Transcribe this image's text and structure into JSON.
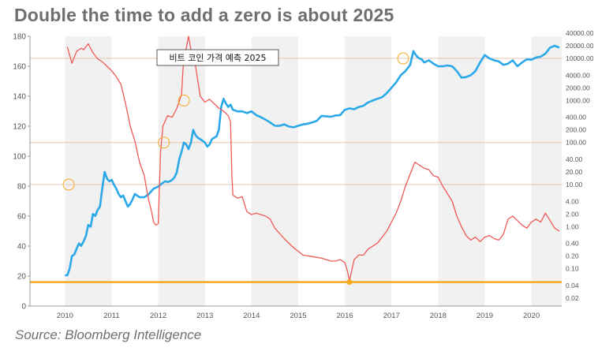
{
  "colors": {
    "blue_series": "#2aa8e8",
    "red_series": "#ef5a57",
    "orange_line": "#f7a823",
    "ref_lines": "#e9c3b0",
    "bands": "#f1f1f1",
    "text": "#6f6f6f"
  },
  "chart_data": {
    "type": "line",
    "title": "Double the time to add a zero is about 2025",
    "source": "Source: Bloomberg Intelligence",
    "annotation": "비트 코인 가격 예측 2025",
    "xlabel": "",
    "ylabel": "",
    "xlim": [
      2009.75,
      2021.15
    ],
    "ylim": [
      0,
      180
    ],
    "grid": false,
    "legend": "none",
    "x_ticks": [
      "2010",
      "2011",
      "2012",
      "2013",
      "2014",
      "2015",
      "2016",
      "2017",
      "2018",
      "2019",
      "2020"
    ],
    "y_ticks": [
      0,
      20,
      40,
      60,
      80,
      100,
      120,
      140,
      160,
      180
    ],
    "y2_scale": "log",
    "y2_ticks": [
      "0.02",
      "0.04",
      "0.10",
      "0.20",
      "0.40",
      "1.00",
      "2.00",
      "4.00",
      "10.00",
      "20.00",
      "40.00",
      "100.00",
      "200.00",
      "400.00",
      "1000.00",
      "2000.00",
      "4000.00",
      "10000.00",
      "20000.00",
      "40000.00"
    ],
    "horizontal_lines_right_axis": [
      10,
      100,
      10000
    ],
    "horizontal_line_left_axis": 16,
    "series": [
      {
        "axis": "right",
        "color": "#2aa8e8",
        "x": [
          2010.5,
          2010.55,
          2010.6,
          2010.65,
          2010.7,
          2010.75,
          2010.8,
          2010.85,
          2010.9,
          2010.95,
          2011.0,
          2011.05,
          2011.1,
          2011.15,
          2011.2,
          2011.25,
          2011.3,
          2011.35,
          2011.4,
          2011.45,
          2011.5,
          2011.55,
          2011.6,
          2011.65,
          2011.7,
          2011.75,
          2011.8,
          2011.85,
          2011.9,
          2011.95,
          2012.0,
          2012.1,
          2012.2,
          2012.3,
          2012.4,
          2012.5,
          2012.6,
          2012.65,
          2012.7,
          2012.75,
          2012.8,
          2012.85,
          2012.9,
          2012.95,
          2013.0,
          2013.05,
          2013.1,
          2013.15,
          2013.2,
          2013.25,
          2013.3,
          2013.35,
          2013.4,
          2013.45,
          2013.5,
          2013.55,
          2013.6,
          2013.65,
          2013.7,
          2013.75,
          2013.8,
          2013.85,
          2013.9,
          2013.95,
          2014.0,
          2014.05,
          2014.1,
          2014.2,
          2014.3,
          2014.4,
          2014.5,
          2014.6,
          2014.7,
          2014.8,
          2014.9,
          2015.0,
          2015.1,
          2015.2,
          2015.3,
          2015.4,
          2015.5,
          2015.6,
          2015.7,
          2015.8,
          2015.9,
          2016.0,
          2016.1,
          2016.2,
          2016.3,
          2016.4,
          2016.5,
          2016.6,
          2016.7,
          2016.8,
          2016.9,
          2017.0,
          2017.1,
          2017.2,
          2017.3,
          2017.4,
          2017.5,
          2017.6,
          2017.7,
          2017.8,
          2017.9,
          2017.97,
          2018.0,
          2018.05,
          2018.1,
          2018.15,
          2018.2,
          2018.3,
          2018.4,
          2018.5,
          2018.6,
          2018.7,
          2018.8,
          2018.9,
          2019.0,
          2019.1,
          2019.2,
          2019.3,
          2019.4,
          2019.5,
          2019.6,
          2019.7,
          2019.8,
          2019.9,
          2020.0,
          2020.1,
          2020.2,
          2020.3,
          2020.4,
          2020.5,
          2020.6,
          2020.7,
          2020.8,
          2020.9,
          2021.0,
          2021.1
        ],
        "y": [
          0.07,
          0.07,
          0.1,
          0.2,
          0.22,
          0.3,
          0.4,
          0.35,
          0.45,
          0.6,
          1.1,
          1.0,
          2.0,
          1.8,
          2.5,
          3.0,
          8.0,
          20.0,
          14.0,
          12.0,
          13.0,
          10.0,
          8.0,
          6.0,
          5.0,
          5.5,
          4.0,
          3.0,
          3.5,
          4.5,
          6.0,
          5.0,
          5.0,
          6.0,
          8.0,
          9.0,
          11.0,
          12.0,
          11.5,
          12.0,
          13.0,
          15.0,
          20.0,
          40.0,
          60.0,
          100.0,
          90.0,
          70.0,
          100.0,
          200.0,
          150.0,
          130.0,
          120.0,
          110.0,
          100.0,
          80.0,
          90.0,
          120.0,
          130.0,
          140.0,
          200.0,
          700.0,
          1100.0,
          850.0,
          700.0,
          800.0,
          600.0,
          550.0,
          550.0,
          500.0,
          550.0,
          450.0,
          400.0,
          350.0,
          300.0,
          250.0,
          250.0,
          270.0,
          240.0,
          230.0,
          250.0,
          270.0,
          280.0,
          300.0,
          330.0,
          430.0,
          420.0,
          410.0,
          440.0,
          450.0,
          600.0,
          650.0,
          620.0,
          700.0,
          750.0,
          900.0,
          1000.0,
          1100.0,
          1200.0,
          1500.0,
          2000.0,
          2700.0,
          4000.0,
          5000.0,
          7000.0,
          15000.0,
          13000.0,
          11000.0,
          10000.0,
          9500.0,
          8000.0,
          9000.0,
          7500.0,
          6500.0,
          6500.0,
          6800.0,
          6500.0,
          5000.0,
          3500.0,
          3600.0,
          4000.0,
          5000.0,
          8000.0,
          12000.0,
          10000.0,
          9000.0,
          8500.0,
          7000.0,
          7500.0,
          9000.0,
          6500.0,
          8000.0,
          9500.0,
          9300.0,
          10500.0,
          11000.0,
          13000.0,
          18000.0,
          20000.0,
          18000.0
        ]
      },
      {
        "axis": "left",
        "color": "#ef5a57",
        "x": [
          2010.55,
          2010.65,
          2010.75,
          2010.85,
          2010.9,
          2011.0,
          2011.1,
          2011.2,
          2011.3,
          2011.4,
          2011.5,
          2011.6,
          2011.7,
          2011.8,
          2011.9,
          2012.0,
          2012.1,
          2012.2,
          2012.25,
          2012.3,
          2012.35,
          2012.4,
          2012.45,
          2012.5,
          2012.55,
          2012.6,
          2012.7,
          2012.8,
          2012.9,
          2013.0,
          2013.05,
          2013.1,
          2013.15,
          2013.2,
          2013.3,
          2013.4,
          2013.5,
          2013.6,
          2013.7,
          2013.8,
          2013.9,
          2014.0,
          2014.05,
          2014.08,
          2014.1,
          2014.2,
          2014.3,
          2014.4,
          2014.5,
          2014.6,
          2014.7,
          2014.8,
          2014.9,
          2015.0,
          2015.2,
          2015.4,
          2015.6,
          2015.8,
          2016.0,
          2016.1,
          2016.2,
          2016.3,
          2016.4,
          2016.5,
          2016.55,
          2016.6,
          2016.7,
          2016.8,
          2016.9,
          2017.0,
          2017.2,
          2017.4,
          2017.5,
          2017.6,
          2017.7,
          2017.8,
          2017.9,
          2018.0,
          2018.1,
          2018.2,
          2018.3,
          2018.4,
          2018.5,
          2018.6,
          2018.7,
          2018.8,
          2018.9,
          2019.0,
          2019.1,
          2019.2,
          2019.3,
          2019.4,
          2019.5,
          2019.6,
          2019.7,
          2019.8,
          2019.9,
          2020.0,
          2020.1,
          2020.2,
          2020.3,
          2020.4,
          2020.5,
          2020.6,
          2020.7,
          2020.8,
          2020.9,
          2021.0,
          2021.1
        ],
        "y": [
          173,
          162,
          170,
          172,
          171,
          175,
          169,
          165,
          163,
          160,
          157,
          153,
          148,
          135,
          120,
          110,
          96,
          87,
          78,
          70,
          64,
          56,
          54,
          55,
          103,
          120,
          127,
          126,
          132,
          141,
          168,
          172,
          180,
          171,
          160,
          140,
          136,
          138,
          135,
          132,
          130,
          127,
          123,
          86,
          74,
          72,
          73,
          63,
          61,
          62,
          61,
          60,
          58,
          52,
          45,
          39,
          34,
          33,
          32,
          31,
          30,
          30,
          31,
          29,
          24,
          17,
          31,
          34,
          34,
          38,
          42,
          50,
          56,
          62,
          70,
          80,
          88,
          96,
          94,
          92,
          91,
          87,
          86,
          80,
          75,
          70,
          60,
          53,
          47,
          44,
          46,
          43,
          46,
          47,
          45,
          44,
          48,
          58,
          60,
          57,
          54,
          52,
          56,
          58,
          56,
          62,
          57,
          52,
          50
        ]
      }
    ]
  }
}
